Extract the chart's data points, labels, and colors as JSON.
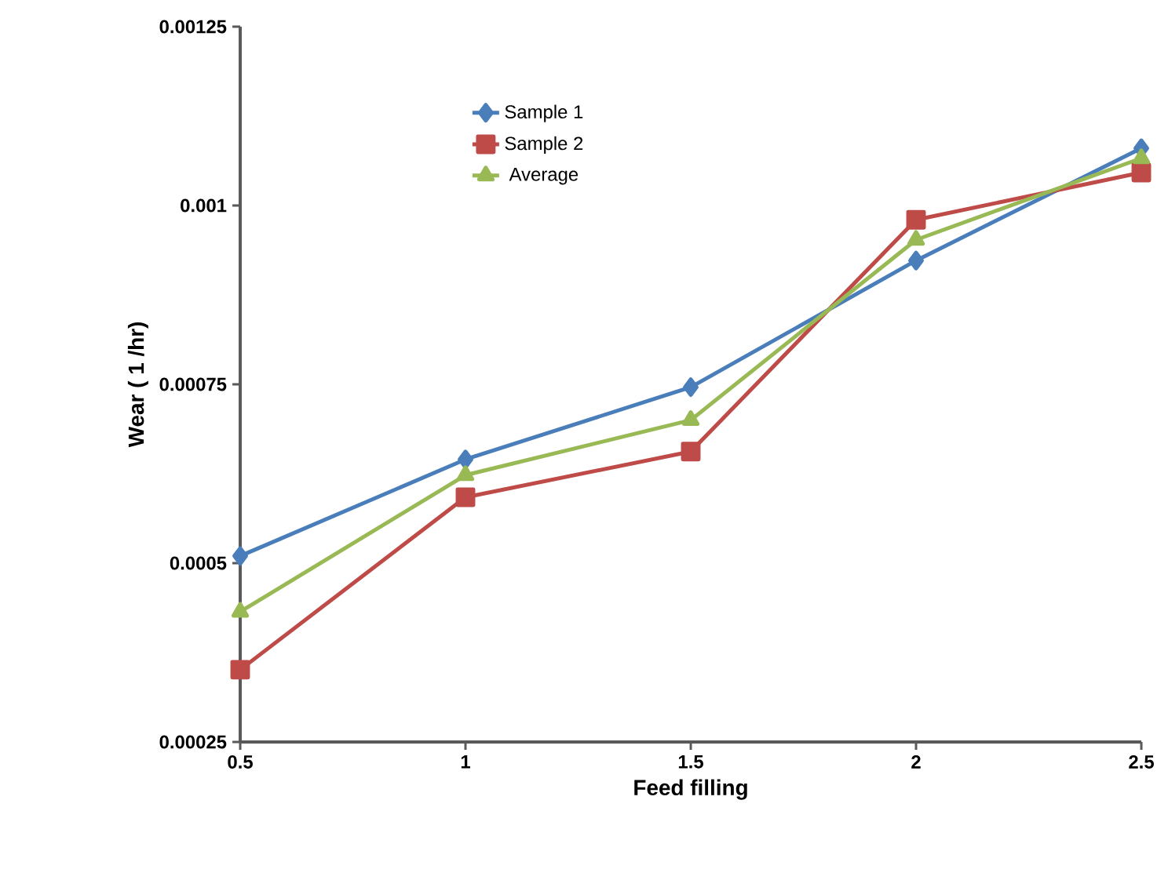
{
  "chart_data": {
    "type": "line",
    "xlabel": "Feed filling",
    "ylabel": "Wear ( 1 /hr)",
    "x": [
      0.5,
      1,
      1.5,
      2,
      2.5
    ],
    "series": [
      {
        "name": "Sample 1",
        "color": "#4a7ebb",
        "marker": "diamond",
        "values": [
          0.00051,
          0.000645,
          0.000746,
          0.000923,
          0.00108
        ]
      },
      {
        "name": "Sample 2",
        "color": "#be4b48",
        "marker": "square",
        "values": [
          0.000351,
          0.000592,
          0.000656,
          0.00098,
          0.001046
        ]
      },
      {
        "name": "Average",
        "color": "#98b954",
        "marker": "triangle",
        "values": [
          0.000432,
          0.000623,
          0.0007,
          0.000952,
          0.001066
        ]
      }
    ],
    "xlim": [
      0.5,
      2.5
    ],
    "ylim": [
      0.00025,
      0.00125
    ],
    "xticks": [
      0.5,
      1,
      1.5,
      2,
      2.5
    ],
    "yticks": [
      0.00025,
      0.0005,
      0.00075,
      0.001,
      0.00125
    ],
    "grid": false,
    "legend": "top left",
    "line_style": "solid"
  }
}
